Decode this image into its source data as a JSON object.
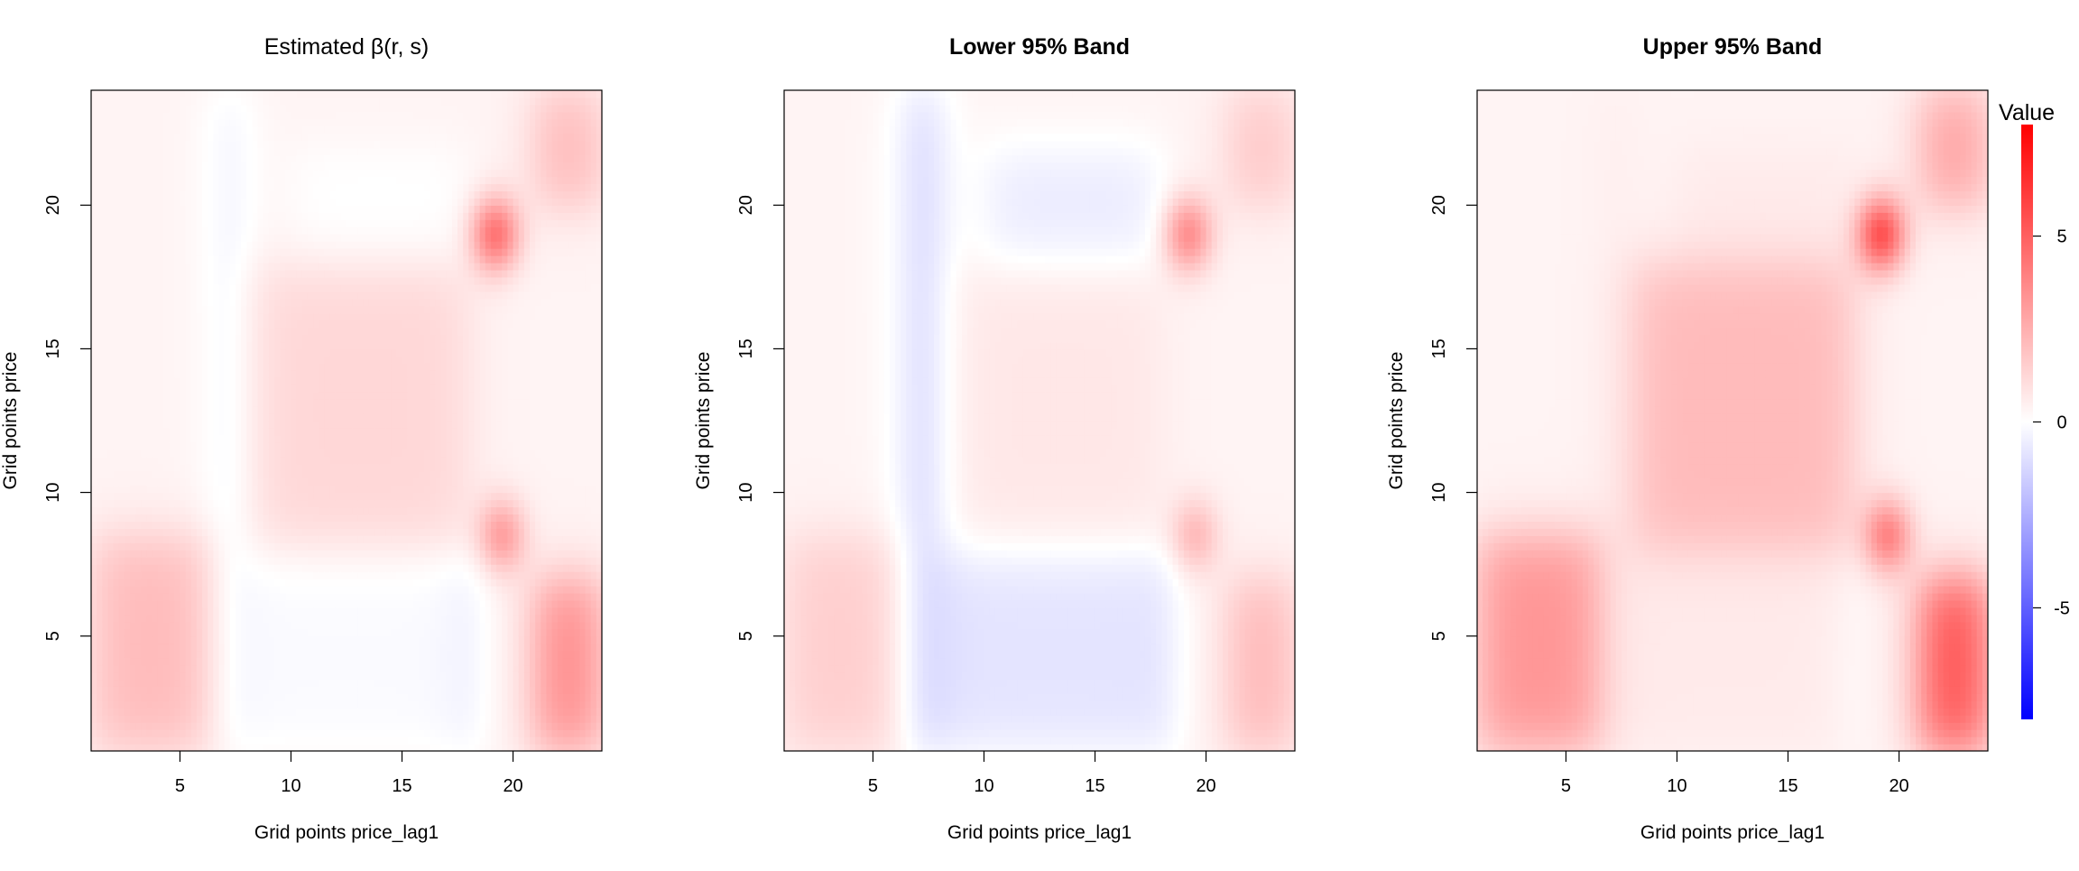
{
  "chart_data": [
    {
      "type": "heatmap",
      "title": "Estimated β(r, s)",
      "xlabel": "Grid points price_lag1",
      "ylabel": "Grid points price",
      "xlim": [
        1,
        24
      ],
      "ylim": [
        1,
        24
      ],
      "xticks": [
        5,
        10,
        15,
        20
      ],
      "yticks": [
        5,
        10,
        15,
        20
      ],
      "grid_resolution": 24,
      "features": [
        {
          "name": "bottom-left block",
          "x": [
            1,
            6.5
          ],
          "y": [
            1,
            8.5
          ],
          "value": 1.8
        },
        {
          "name": "negative column",
          "x": [
            6.5,
            8
          ],
          "y": [
            1,
            24
          ],
          "value": -1.0
        },
        {
          "name": "lower middle negative",
          "x": [
            8,
            17.5
          ],
          "y": [
            1,
            8
          ],
          "value": -0.5
        },
        {
          "name": "upper middle band",
          "x": [
            8,
            18
          ],
          "y": [
            8,
            18
          ],
          "value": 0.9
        },
        {
          "name": "negative streak",
          "x": [
            17.5,
            18.5
          ],
          "y": [
            1,
            8
          ],
          "value": -1.3
        },
        {
          "name": "negative diagonal",
          "x": [
            10,
            18
          ],
          "y": [
            18,
            22
          ],
          "value": -0.4
        },
        {
          "name": "hot spot upper",
          "x": [
            19.2
          ],
          "y": [
            19
          ],
          "value": 4.0
        },
        {
          "name": "hot spot middle",
          "x": [
            19.5
          ],
          "y": [
            8.5
          ],
          "value": 2.6
        },
        {
          "name": "right edge lower",
          "x": [
            21,
            24
          ],
          "y": [
            1,
            7
          ],
          "value": 3.5
        },
        {
          "name": "right edge upper",
          "x": [
            21,
            24
          ],
          "y": [
            20,
            24
          ],
          "value": 2.0
        }
      ]
    },
    {
      "type": "heatmap",
      "title": "Lower 95% Band",
      "xlabel": "Grid points price_lag1",
      "ylabel": "Grid points price",
      "xlim": [
        1,
        24
      ],
      "ylim": [
        1,
        24
      ],
      "xticks": [
        5,
        10,
        15,
        20
      ],
      "yticks": [
        5,
        10,
        15,
        20
      ],
      "grid_resolution": 24,
      "features": [
        {
          "name": "bottom-left block",
          "x": [
            1,
            6.5
          ],
          "y": [
            1,
            8.5
          ],
          "value": 1.2
        },
        {
          "name": "negative column",
          "x": [
            6.5,
            8
          ],
          "y": [
            1,
            24
          ],
          "value": -2.2
        },
        {
          "name": "lower middle negative",
          "x": [
            8,
            17.5
          ],
          "y": [
            1,
            8
          ],
          "value": -1.2
        },
        {
          "name": "upper middle band",
          "x": [
            8,
            18
          ],
          "y": [
            8,
            18
          ],
          "value": 0.4
        },
        {
          "name": "negative streak",
          "x": [
            17.5,
            18.5
          ],
          "y": [
            1,
            8
          ],
          "value": -1.6
        },
        {
          "name": "negative diagonal",
          "x": [
            10,
            18
          ],
          "y": [
            18,
            22
          ],
          "value": -1.0
        },
        {
          "name": "hot spot upper",
          "x": [
            19.2
          ],
          "y": [
            19
          ],
          "value": 3.2
        },
        {
          "name": "hot spot middle",
          "x": [
            19.5
          ],
          "y": [
            8.5
          ],
          "value": 1.8
        },
        {
          "name": "right edge lower",
          "x": [
            21,
            24
          ],
          "y": [
            1,
            7
          ],
          "value": 2.0
        },
        {
          "name": "right edge upper",
          "x": [
            21,
            24
          ],
          "y": [
            20,
            24
          ],
          "value": 1.5
        }
      ]
    },
    {
      "type": "heatmap",
      "title": "Upper 95% Band",
      "xlabel": "Grid points price_lag1",
      "ylabel": "Grid points price",
      "xlim": [
        1,
        24
      ],
      "ylim": [
        1,
        24
      ],
      "xticks": [
        5,
        10,
        15,
        20
      ],
      "yticks": [
        5,
        10,
        15,
        20
      ],
      "grid_resolution": 24,
      "features": [
        {
          "name": "bottom-left block",
          "x": [
            1,
            6.5
          ],
          "y": [
            1,
            8.5
          ],
          "value": 3.0
        },
        {
          "name": "negative column",
          "x": [
            6.5,
            8
          ],
          "y": [
            1,
            24
          ],
          "value": 0.2
        },
        {
          "name": "lower middle negative",
          "x": [
            8,
            17.5
          ],
          "y": [
            1,
            8
          ],
          "value": 0.3
        },
        {
          "name": "upper middle band",
          "x": [
            8,
            18
          ],
          "y": [
            8,
            18
          ],
          "value": 1.8
        },
        {
          "name": "negative streak",
          "x": [
            17.5,
            18.5
          ],
          "y": [
            1,
            8
          ],
          "value": -0.4
        },
        {
          "name": "negative diagonal",
          "x": [
            10,
            18
          ],
          "y": [
            18,
            22
          ],
          "value": 0.3
        },
        {
          "name": "hot spot upper",
          "x": [
            19.2
          ],
          "y": [
            19
          ],
          "value": 5.0
        },
        {
          "name": "hot spot middle",
          "x": [
            19.5
          ],
          "y": [
            8.5
          ],
          "value": 3.4
        },
        {
          "name": "right edge lower",
          "x": [
            21,
            24
          ],
          "y": [
            1,
            7
          ],
          "value": 5.5
        },
        {
          "name": "right edge upper",
          "x": [
            21,
            24
          ],
          "y": [
            20,
            24
          ],
          "value": 2.8
        }
      ]
    }
  ],
  "legend": {
    "title": "Value",
    "range": [
      -8,
      8
    ],
    "ticks": [
      -5,
      0,
      5
    ],
    "tick_labels": [
      "-5",
      "0",
      "5"
    ],
    "colors": {
      "low": "#0000ff",
      "mid": "#ffffff",
      "high": "#ff0000"
    }
  }
}
